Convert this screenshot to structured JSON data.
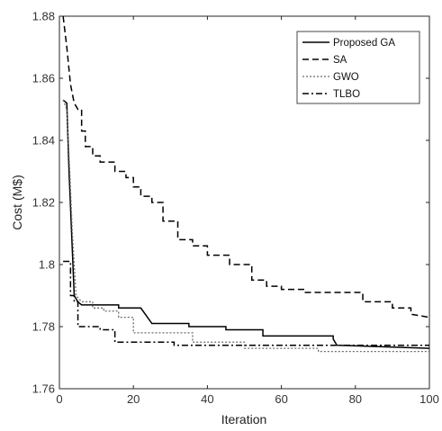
{
  "chart_data": {
    "type": "line",
    "title": "",
    "xlabel": "Iteration",
    "ylabel": "Cost (M$)",
    "xlim": [
      0,
      100
    ],
    "ylim": [
      1.76,
      1.88
    ],
    "xticks": [
      "0",
      "20",
      "40",
      "60",
      "80",
      "100"
    ],
    "xtick_values": [
      0,
      20,
      40,
      60,
      80,
      100
    ],
    "yticks": [
      "1.76",
      "1.78",
      "1.8",
      "1.82",
      "1.84",
      "1.86",
      "1.88"
    ],
    "ytick_values": [
      1.76,
      1.78,
      1.8,
      1.82,
      1.84,
      1.86,
      1.88
    ],
    "grid": false,
    "legend_position": "top-right",
    "series": [
      {
        "name": "Proposed GA",
        "style": "solid",
        "color": "#000000",
        "x": [
          1,
          2,
          2.6,
          3.3,
          4,
          5,
          6,
          9,
          9,
          16,
          16,
          22,
          25,
          25,
          35,
          35,
          45,
          45,
          55,
          55,
          74,
          74,
          75,
          100
        ],
        "y": [
          1.853,
          1.852,
          1.83,
          1.81,
          1.79,
          1.788,
          1.787,
          1.787,
          1.787,
          1.787,
          1.786,
          1.786,
          1.781,
          1.781,
          1.781,
          1.78,
          1.78,
          1.779,
          1.779,
          1.777,
          1.777,
          1.776,
          1.774,
          1.773
        ]
      },
      {
        "name": "SA",
        "style": "dashed",
        "color": "#000000",
        "x": [
          1,
          2,
          3,
          4,
          5,
          6,
          6,
          7,
          7,
          9,
          9,
          11,
          11,
          15,
          15,
          18,
          18,
          20,
          20,
          22,
          22,
          25,
          25,
          28,
          28,
          32,
          32,
          36,
          36,
          40,
          40,
          46,
          46,
          52,
          52,
          56,
          56,
          60,
          60,
          66,
          66,
          74,
          74,
          82,
          82,
          90,
          90,
          95,
          95,
          100
        ],
        "y": [
          1.88,
          1.87,
          1.858,
          1.852,
          1.85,
          1.85,
          1.843,
          1.843,
          1.838,
          1.838,
          1.835,
          1.835,
          1.833,
          1.833,
          1.83,
          1.83,
          1.828,
          1.828,
          1.825,
          1.825,
          1.822,
          1.822,
          1.82,
          1.82,
          1.814,
          1.814,
          1.808,
          1.808,
          1.806,
          1.806,
          1.803,
          1.803,
          1.8,
          1.8,
          1.795,
          1.795,
          1.793,
          1.793,
          1.792,
          1.792,
          1.791,
          1.791,
          1.791,
          1.791,
          1.788,
          1.788,
          1.786,
          1.786,
          1.784,
          1.783
        ]
      },
      {
        "name": "GWO",
        "style": "dotted",
        "color": "#6d6d6d",
        "x": [
          1,
          2,
          2.8,
          3.5,
          4.5,
          6,
          6,
          9,
          9,
          12,
          12,
          16,
          16,
          20,
          20,
          36,
          36,
          50,
          50,
          70,
          70,
          100
        ],
        "y": [
          1.853,
          1.85,
          1.83,
          1.81,
          1.79,
          1.788,
          1.788,
          1.788,
          1.786,
          1.786,
          1.785,
          1.785,
          1.783,
          1.783,
          1.778,
          1.778,
          1.775,
          1.775,
          1.773,
          1.773,
          1.772,
          1.772
        ]
      },
      {
        "name": "TLBO",
        "style": "dashdot",
        "color": "#000000",
        "x": [
          1,
          3,
          3,
          4,
          4,
          5,
          5,
          11,
          11,
          15,
          15,
          31,
          31,
          100
        ],
        "y": [
          1.801,
          1.801,
          1.79,
          1.79,
          1.788,
          1.788,
          1.78,
          1.78,
          1.779,
          1.779,
          1.775,
          1.775,
          1.774,
          1.774
        ]
      }
    ]
  }
}
